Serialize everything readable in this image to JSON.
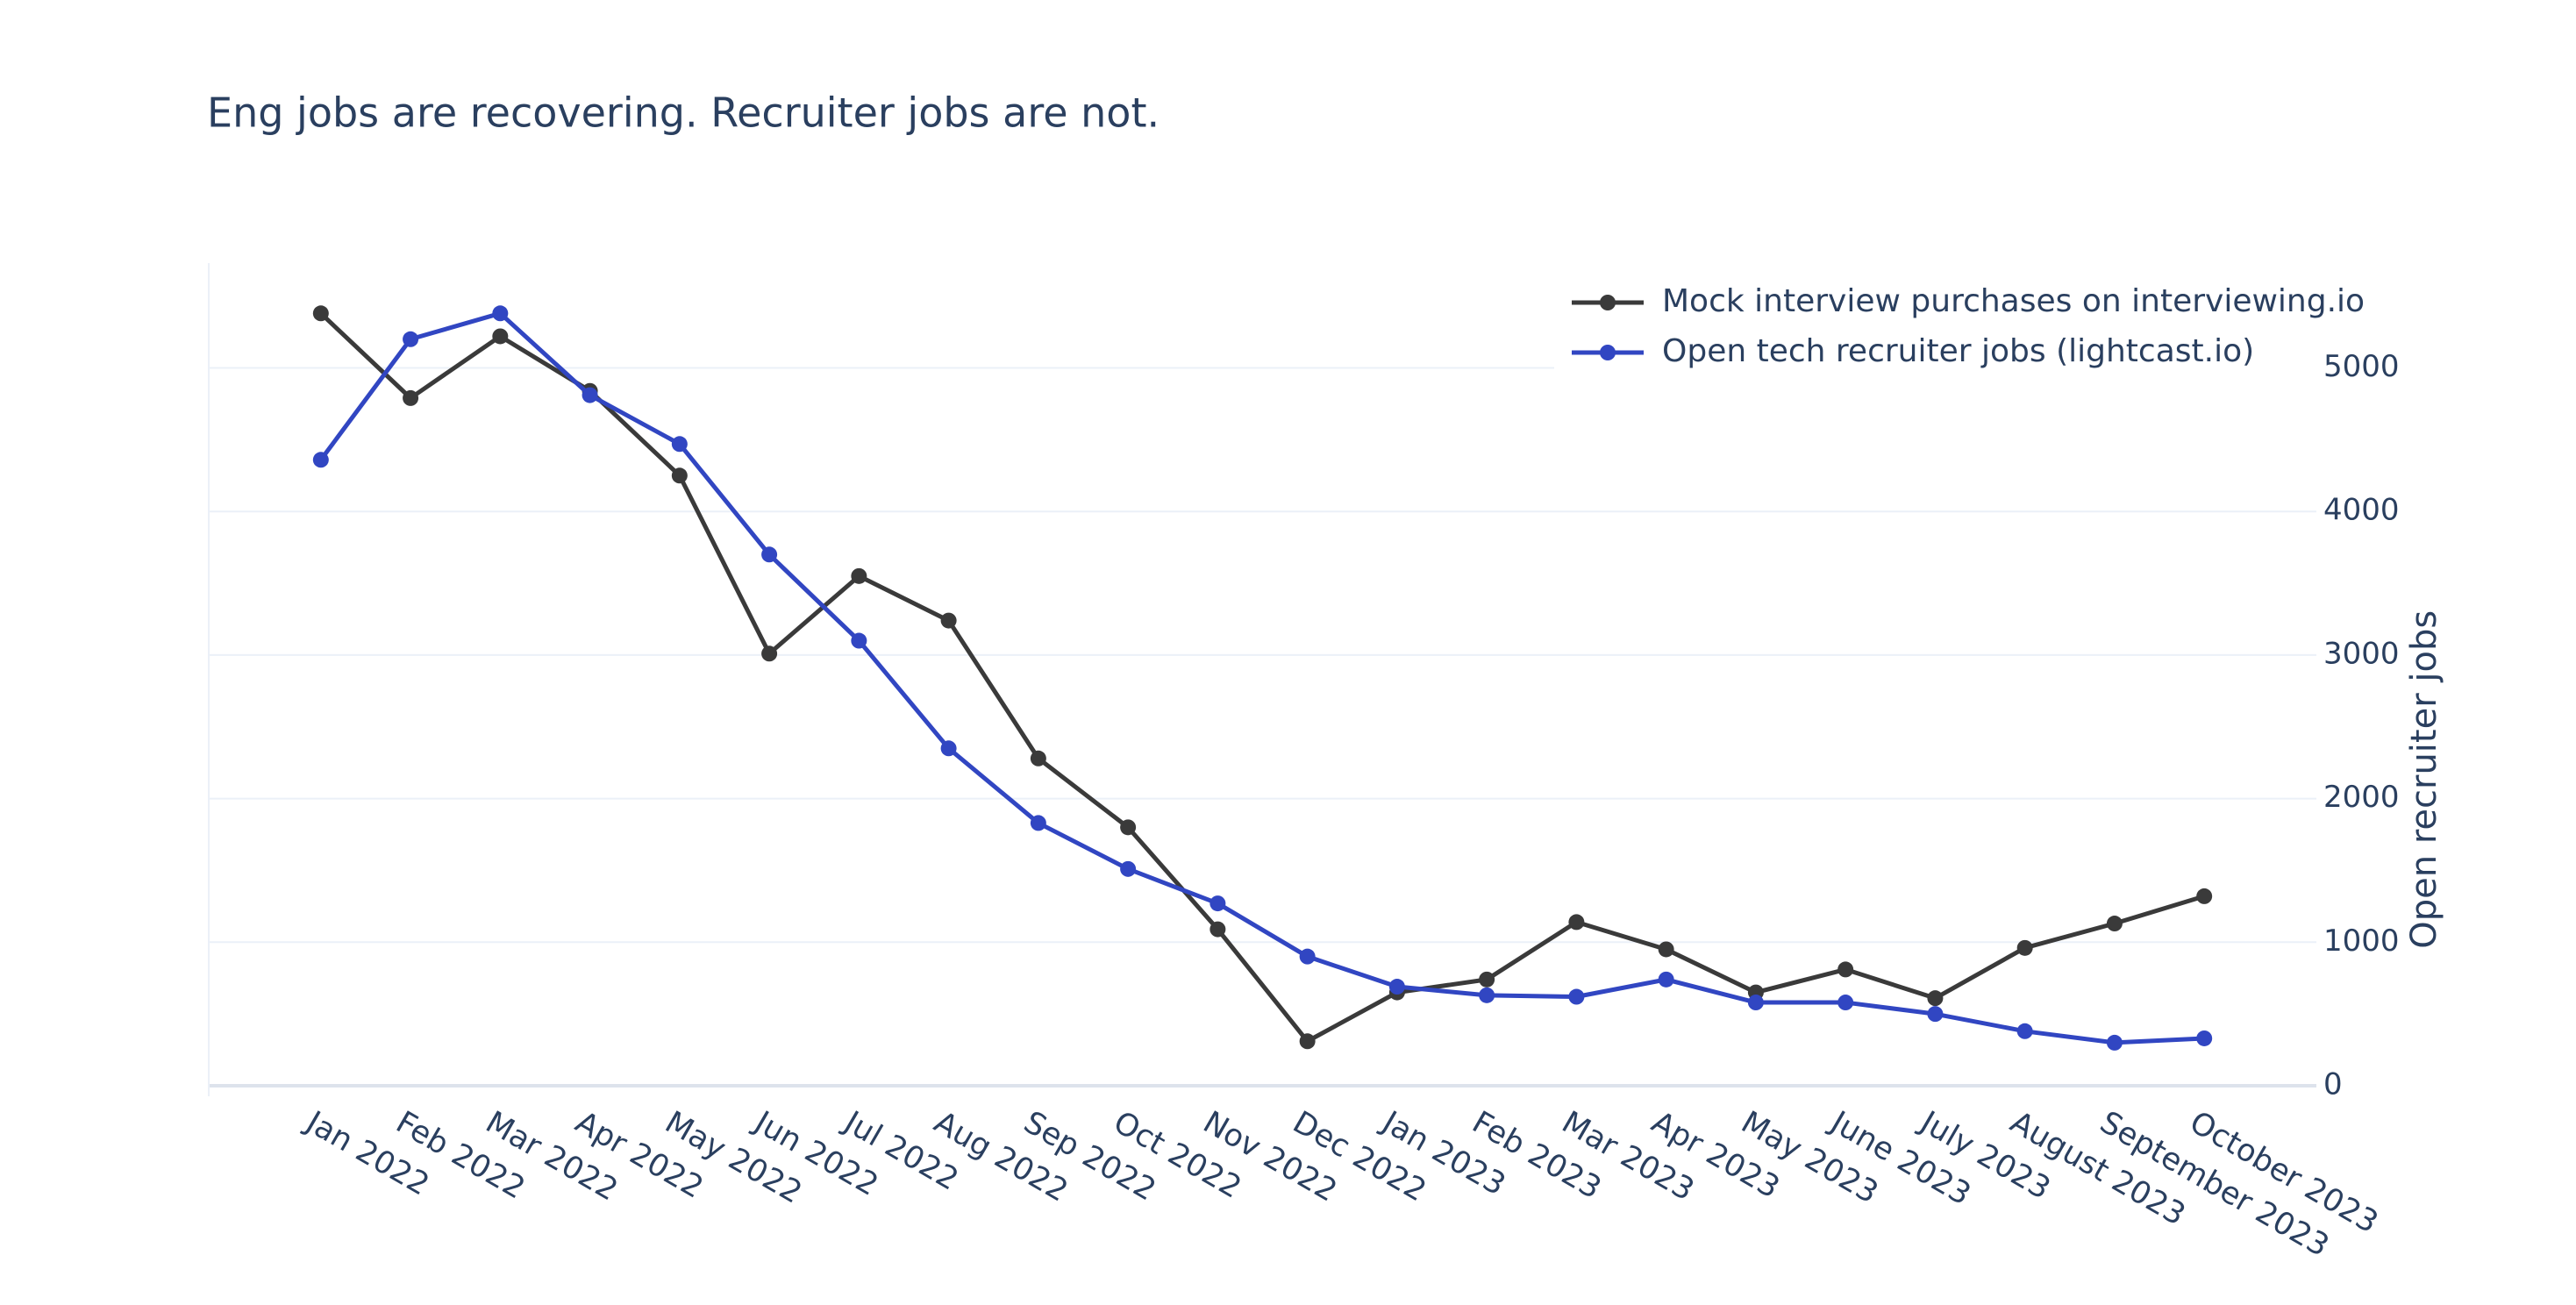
{
  "chart_data": {
    "type": "line",
    "title": "Eng jobs are recovering. Recruiter jobs are not.",
    "y_axis_title": "Open recruiter jobs",
    "y_axis_side": "right",
    "categories": [
      "Jan 2022",
      "Feb 2022",
      "Mar 2022",
      "Apr 2022",
      "May 2022",
      "Jun 2022",
      "Jul 2022",
      "Aug 2022",
      "Sep 2022",
      "Oct 2022",
      "Nov 2022",
      "Dec 2022",
      "Jan 2023",
      "Feb 2023",
      "Mar 2023",
      "Apr 2023",
      "May 2023",
      "June 2023",
      "July 2023",
      "August 2023",
      "September 2023",
      "October 2023"
    ],
    "series": [
      {
        "name": "Mock interview purchases on interviewing.io",
        "color": "#3a3a3a",
        "values": [
          5380,
          4790,
          5220,
          4840,
          4250,
          3010,
          3550,
          3240,
          2280,
          1800,
          1090,
          310,
          650,
          740,
          1140,
          950,
          650,
          810,
          610,
          960,
          1130,
          1320
        ]
      },
      {
        "name": "Open tech recruiter jobs (lightcast.io)",
        "color": "#3146c2",
        "values": [
          4360,
          5200,
          5380,
          4810,
          4470,
          3700,
          3100,
          2350,
          1830,
          1510,
          1270,
          900,
          690,
          630,
          620,
          740,
          580,
          580,
          500,
          380,
          300,
          330
        ]
      }
    ],
    "ylim": [
      0,
      5730
    ],
    "yticks": [
      0,
      1000,
      2000,
      3000,
      4000,
      5000
    ],
    "grid": true,
    "legend": "top-right"
  }
}
